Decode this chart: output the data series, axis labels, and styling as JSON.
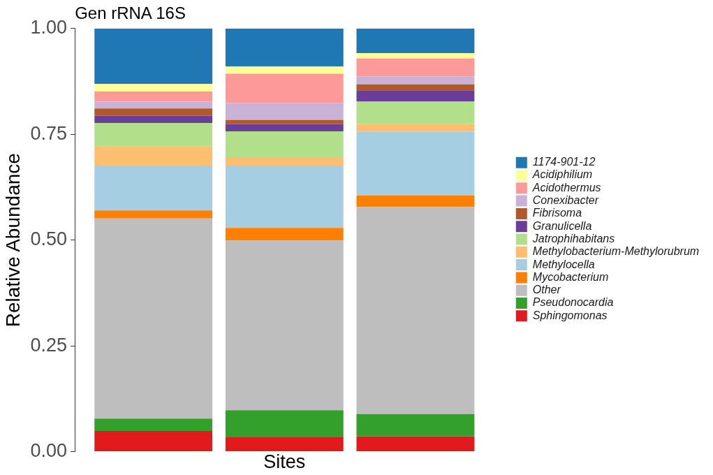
{
  "chart_data": {
    "type": "bar",
    "title": "Gen rRNA 16S",
    "xlabel": "Sites",
    "ylabel": "Relative Abundance",
    "categories": [
      null,
      null,
      null
    ],
    "stacked": true,
    "series": [
      {
        "name": "Sphingomonas",
        "color": "#e31a1c",
        "values": [
          0.049,
          0.034,
          0.036
        ]
      },
      {
        "name": "Pseudonocardia",
        "color": "#33a02c",
        "values": [
          0.029,
          0.064,
          0.053
        ]
      },
      {
        "name": "Other",
        "color": "#bebebe",
        "values": [
          0.473,
          0.401,
          0.489
        ]
      },
      {
        "name": "Mycobacterium",
        "color": "#ff7f00",
        "values": [
          0.019,
          0.03,
          0.027
        ]
      },
      {
        "name": "Methylocella",
        "color": "#a6cee3",
        "values": [
          0.106,
          0.147,
          0.151
        ]
      },
      {
        "name": "Methylobacterium-Methylorubrum",
        "color": "#fdbf6f",
        "values": [
          0.045,
          0.02,
          0.018
        ]
      },
      {
        "name": "Jatrophihabitans",
        "color": "#b2df8a",
        "values": [
          0.056,
          0.061,
          0.053
        ]
      },
      {
        "name": "Granulicella",
        "color": "#6a3d9a",
        "values": [
          0.017,
          0.017,
          0.027
        ]
      },
      {
        "name": "Fibrisoma",
        "color": "#b15928",
        "values": [
          0.017,
          0.01,
          0.014
        ]
      },
      {
        "name": "Conexibacter",
        "color": "#cab2d6",
        "values": [
          0.016,
          0.04,
          0.019
        ]
      },
      {
        "name": "Acidothermus",
        "color": "#fb9a99",
        "values": [
          0.024,
          0.069,
          0.042
        ]
      },
      {
        "name": "Acidiphilium",
        "color": "#ffff99",
        "values": [
          0.018,
          0.017,
          0.013
        ]
      },
      {
        "name": "1174-901-12",
        "color": "#1f78b4",
        "values": [
          0.131,
          0.09,
          0.058
        ]
      }
    ],
    "ylim": [
      0,
      1
    ],
    "yticks": [
      {
        "value": 0,
        "label": "0.00"
      },
      {
        "value": 0.25,
        "label": "0.25"
      },
      {
        "value": 0.5,
        "label": "0.50"
      },
      {
        "value": 0.75,
        "label": "0.75"
      },
      {
        "value": 1,
        "label": "1.00"
      }
    ],
    "grid": false,
    "tick_labels": "y",
    "legend": "right"
  }
}
